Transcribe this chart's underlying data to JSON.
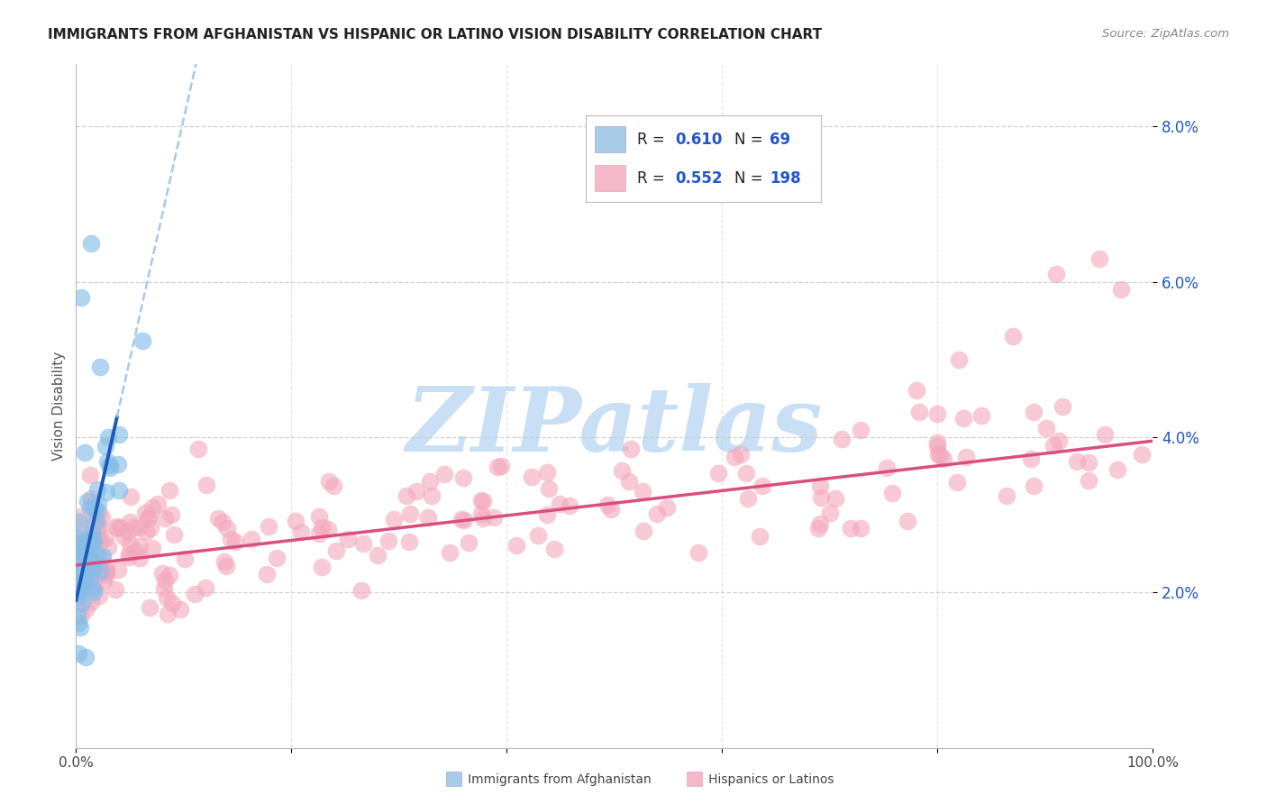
{
  "title": "IMMIGRANTS FROM AFGHANISTAN VS HISPANIC OR LATINO VISION DISABILITY CORRELATION CHART",
  "source": "Source: ZipAtlas.com",
  "ylabel": "Vision Disability",
  "xlim": [
    0.0,
    1.0
  ],
  "ylim": [
    0.0,
    0.088
  ],
  "ytick_vals": [
    0.02,
    0.04,
    0.06,
    0.08
  ],
  "ytick_labels": [
    "2.0%",
    "4.0%",
    "6.0%",
    "8.0%"
  ],
  "xtick_vals": [
    0.0,
    0.2,
    0.4,
    0.6,
    0.8,
    1.0
  ],
  "xtick_labels": [
    "0.0%",
    "",
    "",
    "",
    "",
    "100.0%"
  ],
  "blue_R": 0.61,
  "blue_N": 69,
  "pink_R": 0.552,
  "pink_N": 198,
  "blue_scatter_color": "#87bde8",
  "pink_scatter_color": "#f4a7bc",
  "blue_line_color": "#1a5cb5",
  "pink_line_color": "#d94f80",
  "blue_dash_color": "#aac8e8",
  "watermark_color": "#c8dff5",
  "legend_label_blue": "Immigrants from Afghanistan",
  "legend_label_pink": "Hispanics or Latinos",
  "blue_legend_color": "#a8cbe8",
  "pink_legend_color": "#f4b8c8"
}
